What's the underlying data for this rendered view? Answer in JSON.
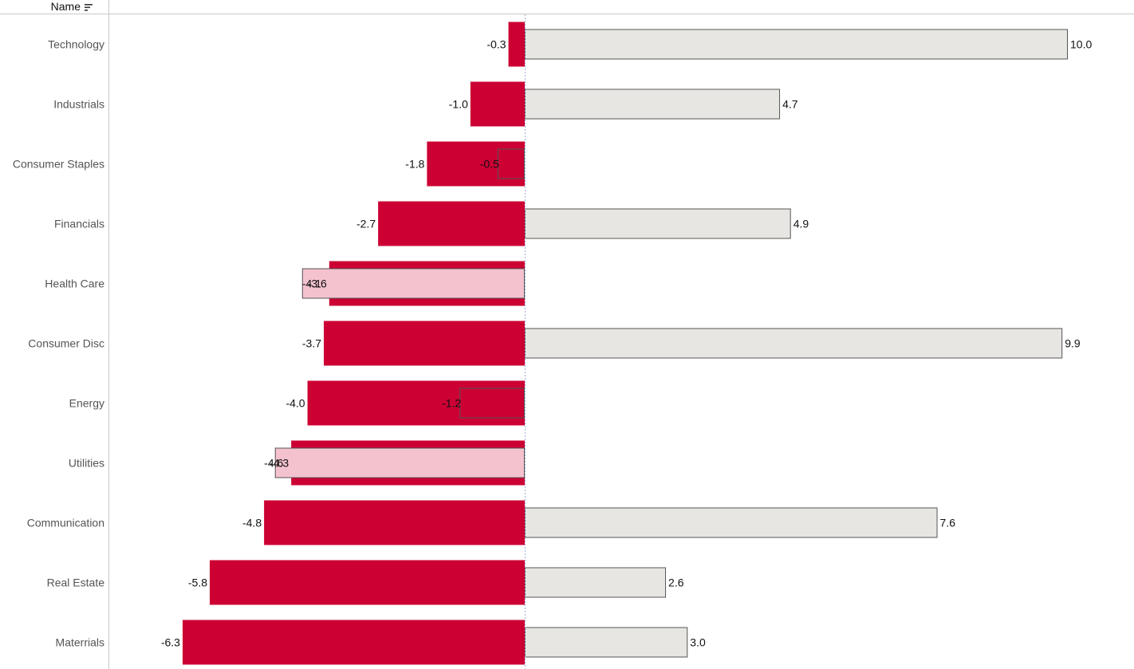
{
  "header": {
    "column_label": "Name",
    "sort_icon": "sort-descending-icon"
  },
  "colors": {
    "negative_bar": "#CC0033",
    "negative_bar_light": "#F4C2CF",
    "positive_bar": "#E8E6E2",
    "outline": "#555555",
    "zero_line": "#9BB0D0",
    "axis_line": "#C8C8C8"
  },
  "chart_data": {
    "type": "bar",
    "orientation": "horizontal",
    "categories": [
      "Technology",
      "Industrials",
      "Consumer Staples",
      "Financials",
      "Health Care",
      "Consumer Disc",
      "Energy",
      "Utilities",
      "Communication",
      "Real Estate",
      "Materrials"
    ],
    "series": [
      {
        "values": [
          -0.3,
          -1.0,
          -1.8,
          -2.7,
          -3.6,
          -3.7,
          -4.0,
          -4.3,
          -4.8,
          -5.8,
          -6.3
        ]
      },
      {
        "values": [
          10.0,
          4.7,
          -0.5,
          4.9,
          -4.1,
          9.9,
          -1.2,
          -4.6,
          7.6,
          2.6,
          3.0
        ]
      }
    ],
    "xlim": [
      -6.3,
      10.0
    ],
    "zero_line": true,
    "legend": "none"
  }
}
